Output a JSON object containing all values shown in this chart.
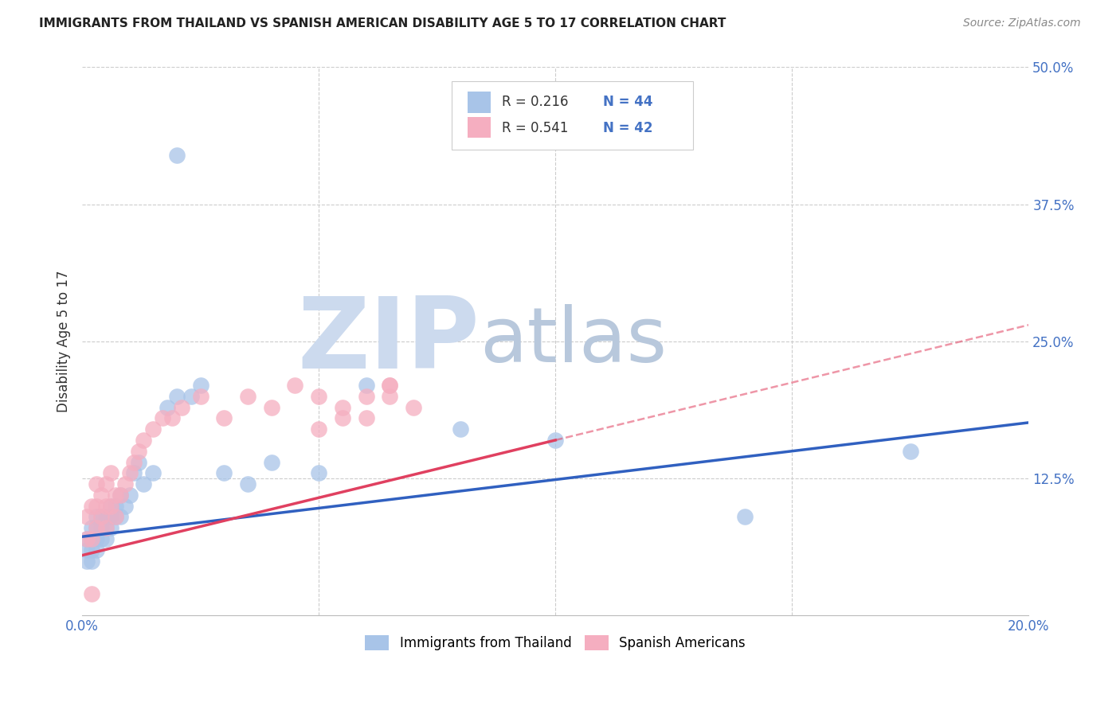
{
  "title": "IMMIGRANTS FROM THAILAND VS SPANISH AMERICAN DISABILITY AGE 5 TO 17 CORRELATION CHART",
  "source": "Source: ZipAtlas.com",
  "ylabel": "Disability Age 5 to 17",
  "xlim": [
    0.0,
    0.2
  ],
  "ylim": [
    0.0,
    0.5
  ],
  "thailand_color": "#a8c4e8",
  "spanish_color": "#f5aec0",
  "thailand_line_color": "#3060c0",
  "spanish_line_color": "#e04060",
  "background_color": "#ffffff",
  "grid_color": "#cccccc",
  "watermark_zip": "ZIP",
  "watermark_atlas": "atlas",
  "watermark_color_zip": "#c8d8ec",
  "watermark_color_atlas": "#c8d8e8",
  "th_intercept": 0.072,
  "th_slope": 0.52,
  "sp_intercept": 0.055,
  "sp_slope": 1.05,
  "thailand_x": [
    0.001,
    0.001,
    0.001,
    0.002,
    0.002,
    0.002,
    0.002,
    0.003,
    0.003,
    0.003,
    0.003,
    0.004,
    0.004,
    0.004,
    0.005,
    0.005,
    0.005,
    0.006,
    0.006,
    0.006,
    0.007,
    0.007,
    0.008,
    0.008,
    0.009,
    0.01,
    0.011,
    0.012,
    0.013,
    0.015,
    0.018,
    0.02,
    0.023,
    0.025,
    0.03,
    0.035,
    0.04,
    0.05,
    0.06,
    0.08,
    0.1,
    0.14,
    0.175,
    0.02
  ],
  "thailand_y": [
    0.05,
    0.06,
    0.07,
    0.05,
    0.06,
    0.07,
    0.08,
    0.06,
    0.07,
    0.08,
    0.09,
    0.07,
    0.08,
    0.09,
    0.07,
    0.08,
    0.09,
    0.08,
    0.09,
    0.1,
    0.09,
    0.1,
    0.09,
    0.11,
    0.1,
    0.11,
    0.13,
    0.14,
    0.12,
    0.13,
    0.19,
    0.2,
    0.2,
    0.21,
    0.13,
    0.12,
    0.14,
    0.13,
    0.21,
    0.17,
    0.16,
    0.09,
    0.15,
    0.42
  ],
  "spanish_x": [
    0.001,
    0.001,
    0.002,
    0.002,
    0.003,
    0.003,
    0.003,
    0.004,
    0.004,
    0.005,
    0.005,
    0.005,
    0.006,
    0.006,
    0.007,
    0.007,
    0.008,
    0.009,
    0.01,
    0.011,
    0.012,
    0.013,
    0.015,
    0.017,
    0.019,
    0.021,
    0.025,
    0.03,
    0.035,
    0.04,
    0.045,
    0.05,
    0.055,
    0.06,
    0.065,
    0.07,
    0.05,
    0.055,
    0.06,
    0.065,
    0.002,
    0.065
  ],
  "spanish_y": [
    0.07,
    0.09,
    0.07,
    0.1,
    0.08,
    0.1,
    0.12,
    0.09,
    0.11,
    0.08,
    0.1,
    0.12,
    0.1,
    0.13,
    0.09,
    0.11,
    0.11,
    0.12,
    0.13,
    0.14,
    0.15,
    0.16,
    0.17,
    0.18,
    0.18,
    0.19,
    0.2,
    0.18,
    0.2,
    0.19,
    0.21,
    0.2,
    0.19,
    0.2,
    0.21,
    0.19,
    0.17,
    0.18,
    0.18,
    0.2,
    0.02,
    0.21
  ]
}
